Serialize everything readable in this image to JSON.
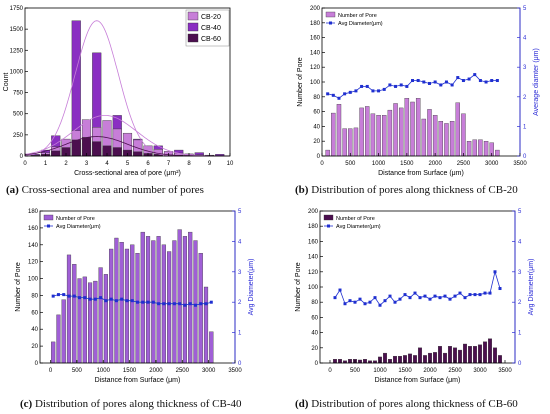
{
  "captions": [
    {
      "label": "(a)",
      "text": "Cross-sectional area and number of pores"
    },
    {
      "label": "(b)",
      "text": "Distribution of pores along thickness of CB-20"
    },
    {
      "label": "(c)",
      "text": "Distribution of pores along thickness of CB-40"
    },
    {
      "label": "(d)",
      "text": "Distribution of pores along thickness of CB-60"
    }
  ],
  "colors": {
    "cb20": "#c77ed8",
    "cb40": "#8a2fc2",
    "cb60": "#4c0f4f",
    "bar_c": "#a05fd6",
    "line": "#1f2fd0",
    "right_axis": "#2b2bd6"
  },
  "chart_data": [
    {
      "id": "a",
      "type": "bar",
      "title": "",
      "xlabel": "Cross-sectional area of pore (μm²)",
      "ylabel": "Count",
      "xlim": [
        0,
        10
      ],
      "ylim": [
        0,
        1750
      ],
      "xticks": [
        "0",
        "1",
        "2",
        "3",
        "4",
        "5",
        "6",
        "7",
        "8",
        "9",
        "10"
      ],
      "yticks": [
        "0",
        "250",
        "500",
        "750",
        "1000",
        "1250",
        "1500",
        "1750"
      ],
      "legend": {
        "position": "top-right",
        "entries": [
          "CB-20",
          "CB-40",
          "CB-60"
        ]
      },
      "x": [
        0.5,
        1,
        1.5,
        2,
        2.5,
        3,
        3.5,
        4,
        4.5,
        5,
        5.5,
        6,
        6.5,
        7,
        7.5,
        8,
        8.5,
        9,
        9.5
      ],
      "series": [
        {
          "name": "CB-20",
          "values": [
            10,
            40,
            110,
            200,
            300,
            430,
            340,
            420,
            320,
            270,
            190,
            120,
            80,
            55,
            35,
            25,
            15,
            8,
            5
          ]
        },
        {
          "name": "CB-40",
          "values": [
            20,
            70,
            240,
            170,
            1600,
            150,
            1220,
            90,
            480,
            60,
            200,
            40,
            120,
            30,
            70,
            20,
            40,
            10,
            20
          ]
        },
        {
          "name": "CB-60",
          "values": [
            5,
            20,
            60,
            100,
            190,
            220,
            170,
            120,
            100,
            70,
            50,
            30,
            20,
            15,
            10,
            5,
            3,
            2,
            1
          ]
        }
      ],
      "fits": [
        {
          "series": "CB-20",
          "mu": 3.9,
          "sigma": 1.55,
          "peak": 480
        },
        {
          "series": "CB-40",
          "mu": 3.5,
          "sigma": 1.05,
          "peak": 1600
        },
        {
          "series": "CB-60",
          "mu": 3.5,
          "sigma": 1.5,
          "peak": 230
        }
      ]
    },
    {
      "id": "b",
      "type": "bar",
      "xlabel": "Distance from Surface (μm)",
      "ylabel": "Number of Pore",
      "ylabel_right": "Average diamter (μm)",
      "xlim": [
        0,
        3500
      ],
      "ylim": [
        0,
        200
      ],
      "ylim_right": [
        0,
        5
      ],
      "xticks": [
        "0",
        "500",
        "1000",
        "1500",
        "2000",
        "2500",
        "3000",
        "3500"
      ],
      "yticks": [
        "0",
        "20",
        "40",
        "60",
        "80",
        "100",
        "120",
        "140",
        "160",
        "180",
        "200"
      ],
      "yticks_right": [
        "0",
        "1",
        "2",
        "3",
        "4",
        "5"
      ],
      "legend": {
        "position": "top-left",
        "entries": [
          "Number of Pore",
          "Avg Diameter(μm)"
        ]
      },
      "x": [
        100,
        200,
        300,
        400,
        500,
        600,
        700,
        800,
        900,
        1000,
        1100,
        1200,
        1300,
        1400,
        1500,
        1600,
        1700,
        1800,
        1900,
        2000,
        2100,
        2200,
        2300,
        2400,
        2500,
        2600,
        2700,
        2800,
        2900,
        3000,
        3100
      ],
      "series": [
        {
          "name": "Number of Pore",
          "values": [
            8,
            58,
            70,
            37,
            37,
            38,
            65,
            67,
            57,
            55,
            55,
            62,
            71,
            65,
            78,
            73,
            78,
            50,
            63,
            55,
            47,
            44,
            47,
            72,
            57,
            20,
            22,
            22,
            20,
            18,
            8
          ]
        },
        {
          "name": "Avg Diameter(μm)",
          "values": [
            2.1,
            2.05,
            1.95,
            2.1,
            2.15,
            2.2,
            2.35,
            2.35,
            2.2,
            2.2,
            2.25,
            2.4,
            2.35,
            2.4,
            2.35,
            2.55,
            2.55,
            2.5,
            2.45,
            2.5,
            2.4,
            2.5,
            2.4,
            2.65,
            2.55,
            2.6,
            2.75,
            2.55,
            2.5,
            2.55,
            2.55
          ]
        }
      ]
    },
    {
      "id": "c",
      "type": "bar",
      "xlabel": "Distance from Surface (μm)",
      "ylabel": "Number of Pore",
      "ylabel_right": "Avg Diameter(μm)",
      "xlim": [
        -200,
        3500
      ],
      "ylim": [
        0,
        180
      ],
      "ylim_right": [
        0,
        5
      ],
      "xticks": [
        "0",
        "500",
        "1000",
        "1500",
        "2000",
        "2500",
        "3000",
        "3500"
      ],
      "yticks": [
        "0",
        "20",
        "40",
        "60",
        "80",
        "100",
        "120",
        "140",
        "160",
        "180"
      ],
      "yticks_right": [
        "0",
        "1",
        "2",
        "3",
        "4",
        "5"
      ],
      "legend": {
        "position": "top-left",
        "entries": [
          "Number of Pore",
          "Avg Diameter(μm)"
        ]
      },
      "x": [
        50,
        150,
        250,
        350,
        450,
        550,
        650,
        750,
        850,
        950,
        1050,
        1150,
        1250,
        1350,
        1450,
        1550,
        1650,
        1750,
        1850,
        1950,
        2050,
        2150,
        2250,
        2350,
        2450,
        2550,
        2650,
        2750,
        2850,
        2950,
        3050
      ],
      "series": [
        {
          "name": "Number of Pore",
          "values": [
            25,
            57,
            75,
            128,
            117,
            100,
            102,
            95,
            97,
            113,
            105,
            135,
            148,
            143,
            135,
            140,
            130,
            155,
            150,
            145,
            150,
            140,
            132,
            145,
            158,
            150,
            155,
            145,
            130,
            90,
            37
          ]
        },
        {
          "name": "Avg Diameter(μm)",
          "values": [
            2.2,
            2.25,
            2.25,
            2.2,
            2.2,
            2.15,
            2.15,
            2.1,
            2.1,
            2.15,
            2.05,
            2.1,
            2.05,
            2.1,
            2.05,
            2.05,
            2.0,
            2.0,
            2.0,
            2.0,
            1.95,
            1.95,
            1.95,
            1.95,
            1.95,
            1.9,
            1.95,
            1.9,
            1.95,
            1.95,
            2.0
          ]
        }
      ]
    },
    {
      "id": "d",
      "type": "bar",
      "xlabel": "Distance from Surface (μm)",
      "ylabel": "Number of Pore",
      "ylabel_right": "Avg Diameter(μm)",
      "xlim": [
        -200,
        3700
      ],
      "ylim": [
        0,
        200
      ],
      "ylim_right": [
        0,
        5
      ],
      "xticks": [
        "0",
        "500",
        "1000",
        "1500",
        "2000",
        "2500",
        "3000",
        "3500"
      ],
      "yticks": [
        "0",
        "20",
        "40",
        "60",
        "80",
        "100",
        "120",
        "140",
        "160",
        "180",
        "200"
      ],
      "yticks_right": [
        "0",
        "1",
        "2",
        "3",
        "4",
        "5"
      ],
      "legend": {
        "position": "top-left",
        "entries": [
          "Number of Pore",
          "Avg Diameter(μm)"
        ]
      },
      "x": [
        100,
        200,
        300,
        400,
        500,
        600,
        700,
        800,
        900,
        1000,
        1100,
        1200,
        1300,
        1400,
        1500,
        1600,
        1700,
        1800,
        1900,
        2000,
        2100,
        2200,
        2300,
        2400,
        2500,
        2600,
        2700,
        2800,
        2900,
        3000,
        3100,
        3200,
        3300,
        3400
      ],
      "series": [
        {
          "name": "Number of Pore",
          "values": [
            5,
            5,
            3,
            5,
            5,
            4,
            5,
            3,
            3,
            8,
            13,
            5,
            9,
            9,
            10,
            12,
            10,
            20,
            10,
            13,
            14,
            22,
            13,
            22,
            20,
            17,
            25,
            22,
            22,
            24,
            28,
            32,
            20,
            10
          ]
        },
        {
          "name": "Avg Diameter(μm)",
          "values": [
            2.15,
            2.4,
            1.95,
            2.05,
            2.0,
            2.1,
            1.95,
            2.0,
            2.15,
            1.9,
            2.05,
            2.2,
            2.0,
            2.1,
            2.25,
            2.15,
            2.3,
            2.15,
            2.2,
            2.1,
            2.2,
            2.15,
            2.2,
            2.1,
            2.2,
            2.3,
            2.15,
            2.25,
            2.25,
            2.25,
            2.3,
            2.3,
            3.0,
            2.45
          ]
        }
      ]
    }
  ]
}
